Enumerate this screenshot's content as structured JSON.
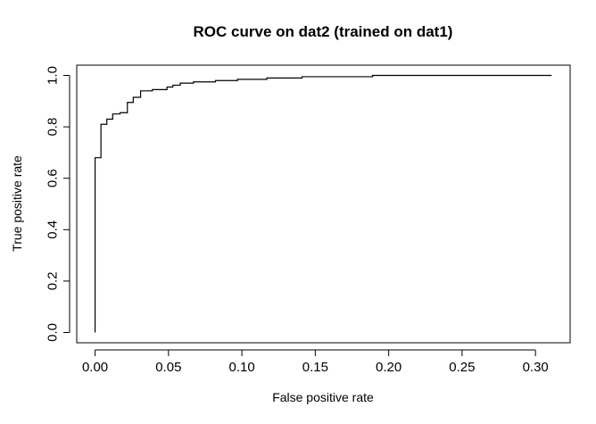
{
  "chart_data": {
    "type": "line",
    "title": "ROC curve on dat2 (trained on dat1)",
    "xlabel": "False positive rate",
    "ylabel": "True positive rate",
    "xlim": [
      -0.0125,
      0.3236
    ],
    "ylim": [
      -0.04,
      1.04
    ],
    "x_ticks": [
      0.0,
      0.05,
      0.1,
      0.15,
      0.2,
      0.25,
      0.3
    ],
    "x_tick_labels": [
      "0.00",
      "0.05",
      "0.10",
      "0.15",
      "0.20",
      "0.25",
      "0.30"
    ],
    "y_ticks": [
      0.0,
      0.2,
      0.4,
      0.6,
      0.8,
      1.0
    ],
    "y_tick_labels": [
      "0.0",
      "0.2",
      "0.4",
      "0.6",
      "0.8",
      "1.0"
    ],
    "line_color": "#000000",
    "series": [
      {
        "step": true,
        "x": [
          0.0,
          0.0,
          0.004,
          0.004,
          0.008,
          0.008,
          0.012,
          0.012,
          0.017,
          0.017,
          0.022,
          0.022,
          0.026,
          0.026,
          0.031,
          0.031,
          0.035,
          0.035,
          0.039,
          0.039,
          0.049,
          0.049,
          0.053,
          0.053,
          0.058,
          0.058,
          0.067,
          0.067,
          0.082,
          0.082,
          0.097,
          0.097,
          0.117,
          0.117,
          0.141,
          0.141,
          0.189,
          0.189,
          0.311
        ],
        "y": [
          0.0,
          0.68,
          0.68,
          0.81,
          0.81,
          0.83,
          0.83,
          0.85,
          0.85,
          0.855,
          0.855,
          0.895,
          0.895,
          0.915,
          0.915,
          0.94,
          0.94,
          0.94,
          0.94,
          0.945,
          0.945,
          0.955,
          0.955,
          0.962,
          0.962,
          0.97,
          0.97,
          0.975,
          0.975,
          0.98,
          0.98,
          0.985,
          0.985,
          0.99,
          0.99,
          0.995,
          0.995,
          1.0,
          1.0
        ]
      }
    ]
  }
}
